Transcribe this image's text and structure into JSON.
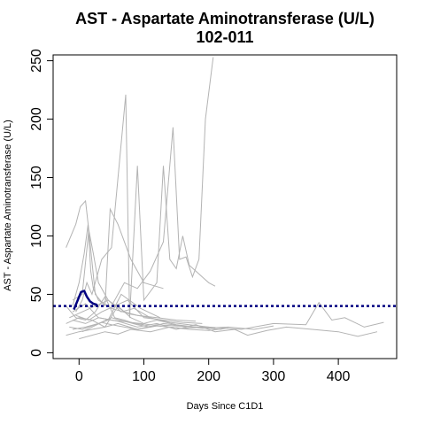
{
  "chart_data": {
    "type": "line",
    "title": "AST - Aspartate Aminotransferase (U/L)",
    "subtitle": "102-011",
    "xlabel": "Days Since C1D1",
    "ylabel": "AST - Aspartate Aminotransferase (U/L)",
    "xlim": [
      -40,
      490
    ],
    "ylim": [
      -5,
      255
    ],
    "x_ticks": [
      0,
      100,
      200,
      300,
      400
    ],
    "y_ticks": [
      0,
      50,
      100,
      150,
      200,
      250
    ],
    "grid": false,
    "reference_line": {
      "y": 40,
      "color": "#000080",
      "style": "dotted"
    },
    "highlight_series": {
      "name": "102-011",
      "color": "#000080",
      "x": [
        -8,
        -2,
        3,
        8,
        12,
        17,
        22,
        28
      ],
      "y": [
        37,
        45,
        52,
        53,
        48,
        44,
        42,
        41
      ]
    },
    "background_series_color": "#b3b3b3",
    "background_series": [
      {
        "x": [
          -20,
          -5,
          2,
          10,
          15,
          22,
          30,
          45,
          70,
          90,
          120,
          150,
          180
        ],
        "y": [
          90,
          110,
          125,
          130,
          105,
          85,
          60,
          45,
          35,
          32,
          30,
          28,
          27
        ]
      },
      {
        "x": [
          -10,
          0,
          8,
          14,
          18,
          22,
          30,
          50,
          80,
          110
        ],
        "y": [
          40,
          60,
          85,
          110,
          70,
          55,
          45,
          38,
          33,
          30
        ]
      },
      {
        "x": [
          -5,
          5,
          12,
          20,
          35,
          50,
          72,
          78,
          90,
          100,
          120,
          130,
          140,
          150,
          160,
          170,
          180,
          190,
          200,
          210
        ],
        "y": [
          35,
          45,
          60,
          50,
          80,
          90,
          221,
          30,
          160,
          45,
          60,
          160,
          80,
          72,
          100,
          75,
          70,
          65,
          60,
          57
        ]
      },
      {
        "x": [
          50,
          70,
          90,
          110,
          130,
          145,
          155,
          165,
          175,
          185,
          195,
          207
        ],
        "y": [
          40,
          60,
          55,
          70,
          95,
          193,
          80,
          82,
          65,
          80,
          200,
          253
        ]
      },
      {
        "x": [
          -10,
          5,
          15,
          25,
          40,
          48,
          60,
          80,
          100,
          130
        ],
        "y": [
          45,
          50,
          105,
          50,
          40,
          123,
          110,
          80,
          60,
          55
        ]
      },
      {
        "x": [
          -20,
          0,
          20,
          40,
          60,
          80,
          100,
          120,
          150,
          180,
          220
        ],
        "y": [
          25,
          30,
          28,
          22,
          40,
          30,
          25,
          28,
          24,
          22,
          20
        ]
      },
      {
        "x": [
          -15,
          5,
          25,
          45,
          65,
          85,
          110,
          140,
          170,
          200
        ],
        "y": [
          30,
          35,
          40,
          45,
          35,
          38,
          30,
          26,
          24,
          22
        ]
      },
      {
        "x": [
          -10,
          10,
          30,
          50,
          70,
          90,
          110,
          130,
          160,
          190,
          230,
          270,
          300
        ],
        "y": [
          20,
          22,
          25,
          30,
          27,
          24,
          22,
          25,
          23,
          21,
          22,
          20,
          23
        ]
      },
      {
        "x": [
          -20,
          0,
          20,
          40,
          60,
          90,
          120,
          160,
          200,
          250,
          300,
          350,
          370,
          390,
          410,
          440,
          470
        ],
        "y": [
          15,
          18,
          20,
          22,
          25,
          20,
          23,
          21,
          22,
          20,
          25,
          24,
          43,
          28,
          30,
          22,
          26
        ]
      },
      {
        "x": [
          -10,
          10,
          30,
          60,
          90,
          120,
          150,
          180,
          210,
          240,
          260,
          290,
          320,
          360,
          400,
          430,
          460
        ],
        "y": [
          28,
          25,
          30,
          27,
          22,
          25,
          20,
          24,
          18,
          20,
          15,
          19,
          22,
          20,
          18,
          14,
          18
        ]
      },
      {
        "x": [
          -5,
          15,
          35,
          55,
          75,
          100,
          130,
          160,
          190
        ],
        "y": [
          32,
          28,
          35,
          40,
          45,
          30,
          28,
          26,
          25
        ]
      },
      {
        "x": [
          -15,
          5,
          25,
          45,
          65,
          95,
          125
        ],
        "y": [
          22,
          20,
          24,
          28,
          50,
          38,
          30
        ]
      },
      {
        "x": [
          0,
          20,
          40,
          60,
          80,
          110,
          140,
          170,
          200,
          230
        ],
        "y": [
          12,
          15,
          18,
          16,
          20,
          18,
          22,
          20,
          19,
          21
        ]
      },
      {
        "x": [
          -20,
          -5,
          10,
          25,
          40,
          55,
          70,
          85,
          100
        ],
        "y": [
          40,
          30,
          28,
          35,
          48,
          30,
          28,
          25,
          24
        ]
      },
      {
        "x": [
          -10,
          10,
          30,
          50,
          80,
          110
        ],
        "y": [
          35,
          42,
          30,
          28,
          26,
          24
        ]
      },
      {
        "x": [
          5,
          20,
          35,
          50,
          70,
          90,
          120,
          150,
          180,
          210
        ],
        "y": [
          18,
          22,
          26,
          24,
          22,
          20,
          24,
          23,
          22,
          21
        ]
      }
    ]
  }
}
